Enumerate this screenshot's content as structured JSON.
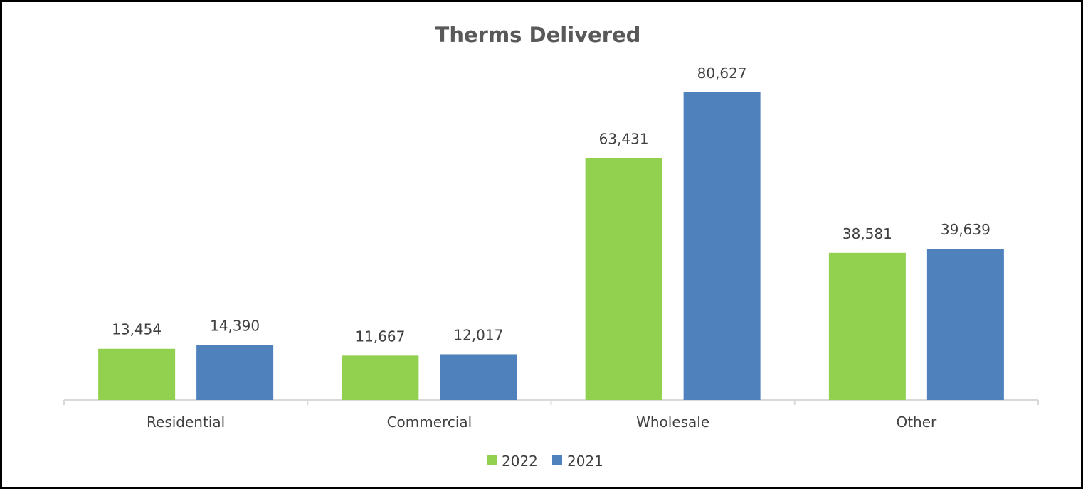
{
  "chart_data": {
    "type": "bar",
    "title": "Therms Delivered",
    "categories": [
      "Residential",
      "Commercial",
      "Wholesale",
      "Other"
    ],
    "series": [
      {
        "name": "2022",
        "color": "#92d050",
        "values": [
          13454,
          11667,
          63431,
          38581
        ],
        "labels": [
          "13,454",
          "11,667",
          "63,431",
          "38,581"
        ]
      },
      {
        "name": "2021",
        "color": "#4f81bd",
        "values": [
          14390,
          12017,
          80627,
          39639
        ],
        "labels": [
          "14,390",
          "12,017",
          "80,627",
          "39,639"
        ]
      }
    ],
    "ylim": [
      0,
      80627
    ],
    "grid": false,
    "legend": "bottom"
  }
}
